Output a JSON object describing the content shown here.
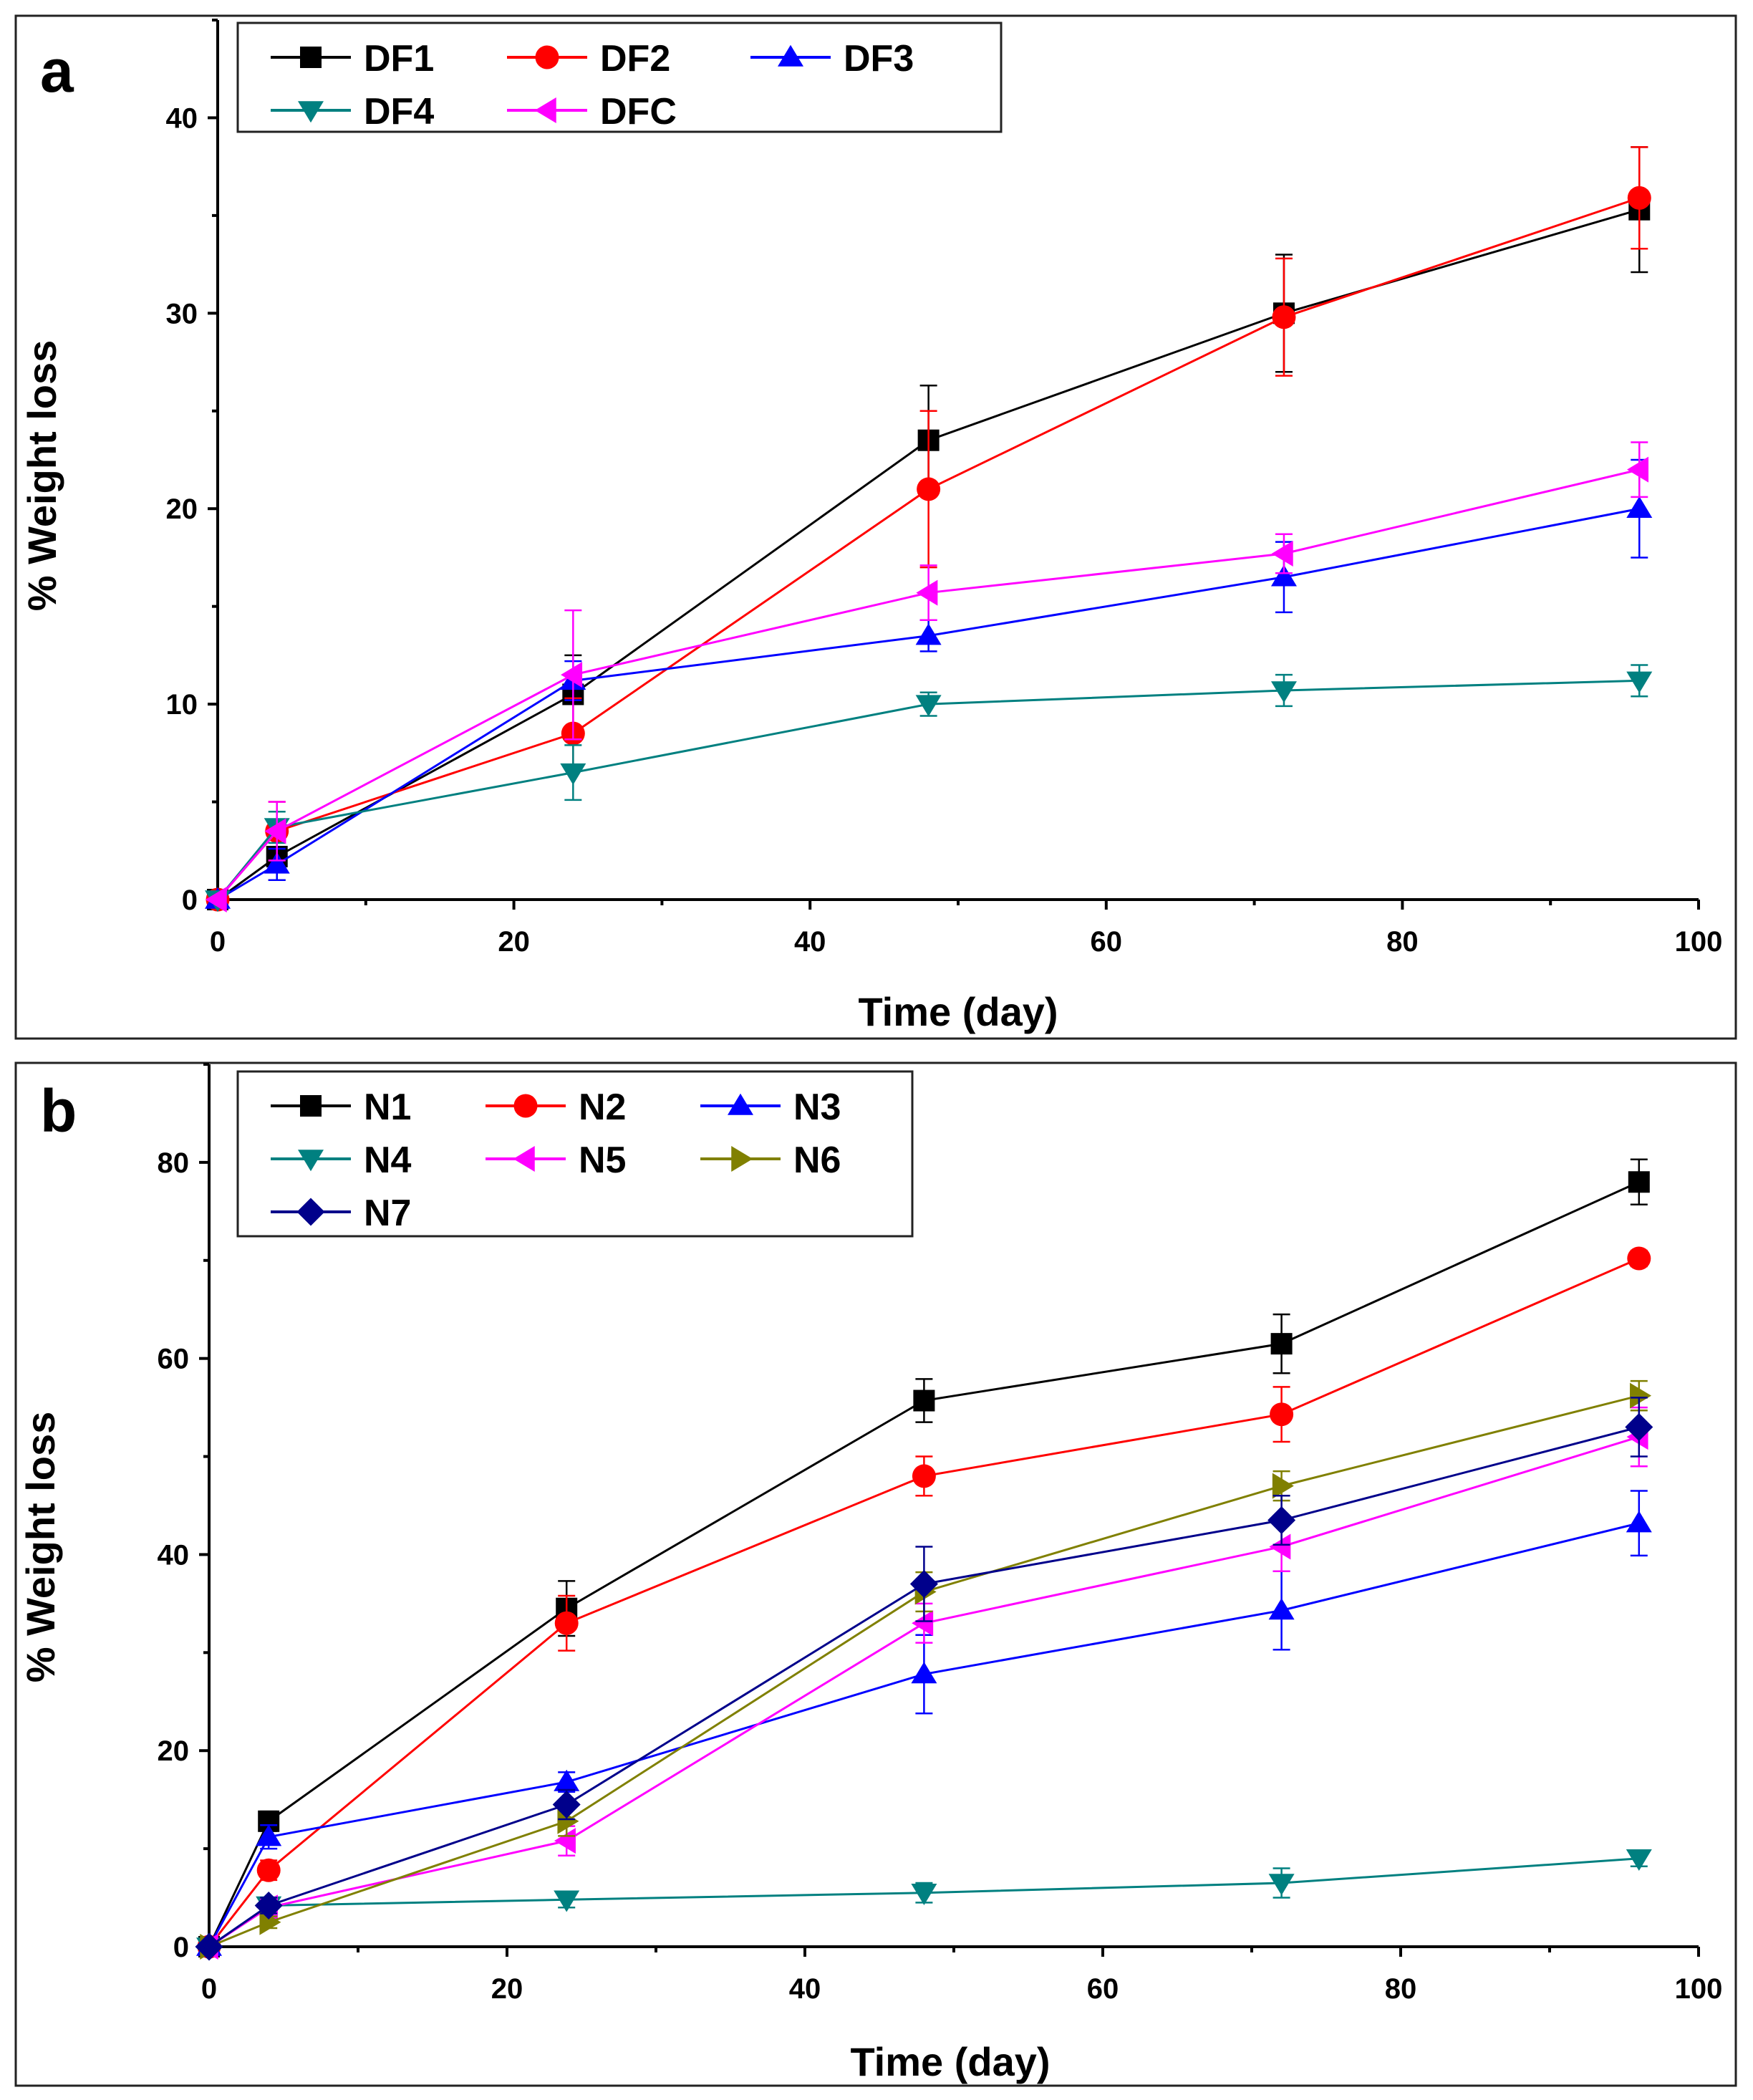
{
  "chart_data": [
    {
      "id": "a",
      "type": "line",
      "panel_label": "a",
      "xlabel": "Time (day)",
      "ylabel": "% Weight loss",
      "xlim": [
        0,
        100
      ],
      "ylim": [
        0,
        45
      ],
      "xticks": [
        0,
        20,
        40,
        60,
        80,
        100
      ],
      "yticks": [
        0,
        10,
        20,
        30,
        40
      ],
      "x": [
        0,
        4,
        24,
        48,
        72,
        96
      ],
      "legend_position": "top-left",
      "legend_columns": 3,
      "series": [
        {
          "name": "DF1",
          "color": "#000000",
          "marker": "square",
          "values": [
            0,
            2.2,
            10.5,
            23.5,
            30.0,
            35.3
          ],
          "errors": [
            0,
            1.2,
            2.0,
            2.8,
            3.0,
            3.2
          ]
        },
        {
          "name": "DF2",
          "color": "#ff0000",
          "marker": "circle",
          "values": [
            0,
            3.5,
            8.5,
            21.0,
            29.8,
            35.9
          ],
          "errors": [
            0,
            1.5,
            1.8,
            4.0,
            3.0,
            2.6
          ]
        },
        {
          "name": "DF3",
          "color": "#0000ff",
          "marker": "triangle-up",
          "values": [
            0,
            1.8,
            11.2,
            13.5,
            16.5,
            20.0
          ],
          "errors": [
            0,
            0.8,
            1.0,
            0.8,
            1.8,
            2.5
          ]
        },
        {
          "name": "DF4",
          "color": "#008080",
          "marker": "triangle-down",
          "values": [
            0,
            3.7,
            6.5,
            10.0,
            10.7,
            11.2
          ],
          "errors": [
            0,
            0.8,
            1.4,
            0.6,
            0.8,
            0.8
          ]
        },
        {
          "name": "DFC",
          "color": "#ff00ff",
          "marker": "triangle-left",
          "values": [
            0,
            3.5,
            11.5,
            15.7,
            17.7,
            22.0
          ],
          "errors": [
            0,
            1.5,
            3.3,
            1.4,
            1.0,
            1.4
          ]
        }
      ]
    },
    {
      "id": "b",
      "type": "line",
      "panel_label": "b",
      "xlabel": "Time (day)",
      "ylabel": "% Weight loss",
      "xlim": [
        0,
        100
      ],
      "ylim": [
        0,
        90
      ],
      "xticks": [
        0,
        20,
        40,
        60,
        80,
        100
      ],
      "yticks": [
        0,
        20,
        40,
        60,
        80
      ],
      "x": [
        0,
        4,
        24,
        48,
        72,
        96
      ],
      "legend_position": "top-left",
      "legend_columns": 3,
      "series": [
        {
          "name": "N1",
          "color": "#000000",
          "marker": "square",
          "values": [
            0,
            12.8,
            34.5,
            55.7,
            61.5,
            78.0
          ],
          "errors": [
            0,
            1.0,
            2.8,
            2.2,
            3.0,
            2.3
          ]
        },
        {
          "name": "N2",
          "color": "#ff0000",
          "marker": "circle",
          "values": [
            0,
            7.8,
            33.0,
            48.0,
            54.3,
            70.2
          ],
          "errors": [
            0,
            1.0,
            2.8,
            2.0,
            2.8,
            0.8
          ]
        },
        {
          "name": "N3",
          "color": "#0000ff",
          "marker": "triangle-up",
          "values": [
            0,
            11.2,
            16.8,
            27.8,
            34.3,
            43.2
          ],
          "errors": [
            0,
            1.2,
            1.0,
            4.0,
            4.0,
            3.3
          ]
        },
        {
          "name": "N4",
          "color": "#008080",
          "marker": "triangle-down",
          "values": [
            0,
            4.2,
            4.8,
            5.5,
            6.5,
            9.0
          ],
          "errors": [
            0,
            0.6,
            0.8,
            1.0,
            1.5,
            0.8
          ]
        },
        {
          "name": "N5",
          "color": "#ff00ff",
          "marker": "triangle-left",
          "values": [
            0,
            4.0,
            10.8,
            33.0,
            40.8,
            52.0
          ],
          "errors": [
            0,
            0.8,
            1.5,
            2.0,
            2.5,
            3.0
          ]
        },
        {
          "name": "N6",
          "color": "#808000",
          "marker": "triangle-right",
          "values": [
            0,
            2.5,
            12.8,
            36.2,
            47.0,
            56.2
          ],
          "errors": [
            0,
            0.6,
            1.5,
            2.0,
            1.5,
            1.5
          ]
        },
        {
          "name": "N7",
          "color": "#00008b",
          "marker": "diamond",
          "values": [
            0,
            4.2,
            14.5,
            37.0,
            43.5,
            53.0
          ],
          "errors": [
            0,
            0.8,
            1.5,
            3.8,
            2.5,
            3.0
          ]
        }
      ]
    }
  ]
}
